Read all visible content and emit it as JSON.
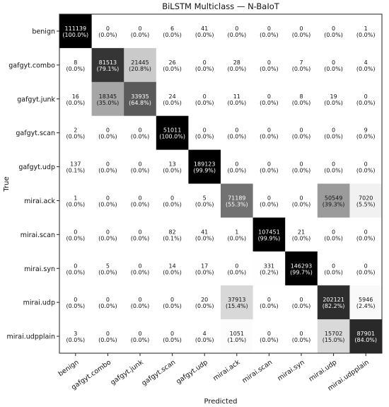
{
  "chart_data": {
    "type": "heatmap",
    "title": "BiLSTM Multiclass — N-BaIoT",
    "xlabel": "Predicted",
    "ylabel": "True",
    "labels": [
      "benign",
      "gafgyt.combo",
      "gafgyt.junk",
      "gafgyt.scan",
      "gafgyt.udp",
      "mirai.ack",
      "mirai.scan",
      "mirai.syn",
      "mirai.udp",
      "mirai.udpplain"
    ],
    "colormap": "grayscale (row-normalized, black = 100%)",
    "counts": [
      [
        111139,
        0,
        0,
        6,
        41,
        0,
        0,
        0,
        0,
        1
      ],
      [
        8,
        81513,
        21445,
        26,
        0,
        28,
        0,
        7,
        0,
        4
      ],
      [
        16,
        18345,
        33935,
        24,
        0,
        11,
        0,
        8,
        19,
        0
      ],
      [
        2,
        0,
        0,
        51011,
        0,
        0,
        0,
        0,
        0,
        9
      ],
      [
        137,
        0,
        0,
        13,
        189123,
        0,
        0,
        0,
        0,
        0
      ],
      [
        1,
        0,
        0,
        0,
        5,
        71189,
        0,
        0,
        50549,
        7020
      ],
      [
        0,
        0,
        0,
        82,
        41,
        1,
        107451,
        21,
        0,
        0
      ],
      [
        0,
        5,
        0,
        14,
        17,
        0,
        331,
        146293,
        0,
        0
      ],
      [
        0,
        0,
        0,
        0,
        20,
        37913,
        0,
        0,
        202121,
        5946
      ],
      [
        3,
        0,
        0,
        0,
        4,
        1051,
        0,
        0,
        15702,
        87901
      ]
    ],
    "percents": [
      [
        "(100.0%)",
        "(0.0%)",
        "(0.0%)",
        "(0.0%)",
        "(0.0%)",
        "(0.0%)",
        "(0.0%)",
        "(0.0%)",
        "(0.0%)",
        "(0.0%)"
      ],
      [
        "(0.0%)",
        "(79.1%)",
        "(20.8%)",
        "(0.0%)",
        "(0.0%)",
        "(0.0%)",
        "(0.0%)",
        "(0.0%)",
        "(0.0%)",
        "(0.0%)"
      ],
      [
        "(0.0%)",
        "(35.0%)",
        "(64.8%)",
        "(0.0%)",
        "(0.0%)",
        "(0.0%)",
        "(0.0%)",
        "(0.0%)",
        "(0.0%)",
        "(0.0%)"
      ],
      [
        "(0.0%)",
        "(0.0%)",
        "(0.0%)",
        "(100.0%)",
        "(0.0%)",
        "(0.0%)",
        "(0.0%)",
        "(0.0%)",
        "(0.0%)",
        "(0.0%)"
      ],
      [
        "(0.1%)",
        "(0.0%)",
        "(0.0%)",
        "(0.0%)",
        "(99.9%)",
        "(0.0%)",
        "(0.0%)",
        "(0.0%)",
        "(0.0%)",
        "(0.0%)"
      ],
      [
        "(0.0%)",
        "(0.0%)",
        "(0.0%)",
        "(0.0%)",
        "(0.0%)",
        "(55.3%)",
        "(0.0%)",
        "(0.0%)",
        "(39.3%)",
        "(5.5%)"
      ],
      [
        "(0.0%)",
        "(0.0%)",
        "(0.0%)",
        "(0.1%)",
        "(0.0%)",
        "(0.0%)",
        "(99.9%)",
        "(0.0%)",
        "(0.0%)",
        "(0.0%)"
      ],
      [
        "(0.0%)",
        "(0.0%)",
        "(0.0%)",
        "(0.0%)",
        "(0.0%)",
        "(0.0%)",
        "(0.2%)",
        "(99.7%)",
        "(0.0%)",
        "(0.0%)"
      ],
      [
        "(0.0%)",
        "(0.0%)",
        "(0.0%)",
        "(0.0%)",
        "(0.0%)",
        "(15.4%)",
        "(0.0%)",
        "(0.0%)",
        "(82.2%)",
        "(2.4%)"
      ],
      [
        "(0.0%)",
        "(0.0%)",
        "(0.0%)",
        "(0.0%)",
        "(0.0%)",
        "(1.0%)",
        "(0.0%)",
        "(0.0%)",
        "(15.0%)",
        "(84.0%)"
      ]
    ]
  }
}
